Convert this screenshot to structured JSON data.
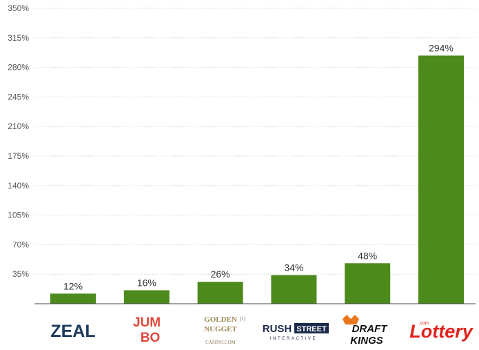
{
  "chart_data": {
    "type": "bar",
    "categories": [
      "ZEAL",
      "JUMBO",
      "GOLDEN NUGGET CASINO.COM",
      "RUSH STREET INTERACTIVE",
      "DRAFT KINGS",
      "Lottery.com"
    ],
    "values": [
      12,
      16,
      26,
      34,
      48,
      294
    ],
    "data_labels": [
      "12%",
      "16%",
      "26%",
      "34%",
      "48%",
      "294%"
    ],
    "ylim": [
      0,
      350
    ],
    "yticks": [
      0,
      35,
      70,
      105,
      140,
      175,
      210,
      245,
      280,
      315,
      350
    ],
    "ytick_labels": [
      "",
      "35%",
      "70%",
      "105%",
      "140%",
      "175%",
      "210%",
      "245%",
      "280%",
      "315%",
      "350%"
    ],
    "title": "",
    "xlabel": "",
    "ylabel": "",
    "grid": true,
    "bar_color": "#4d8a1c"
  },
  "logos": {
    "zeal": {
      "text": "ZEAL",
      "color": "#1b3a5c"
    },
    "jumbo": {
      "line1": "JUM",
      "line2": "BO",
      "color": "#e0463b"
    },
    "golden_nugget": {
      "line1": "GOLDEN",
      "line2": "NUGGET",
      "line3": "CASINO.COM",
      "footnote": "(1)",
      "color": "#a08a55"
    },
    "rush_street": {
      "line1a": "RUSH",
      "line1b": "STREET",
      "line2": "INTERACTIVE",
      "color": "#1b2a4a"
    },
    "draftkings": {
      "line1": "DRAFT",
      "line2": "KINGS",
      "color": "#111111",
      "accent": "#e8761c"
    },
    "lottery": {
      "text": "Lottery",
      "suffix": ".com",
      "color": "#e0231e"
    }
  }
}
